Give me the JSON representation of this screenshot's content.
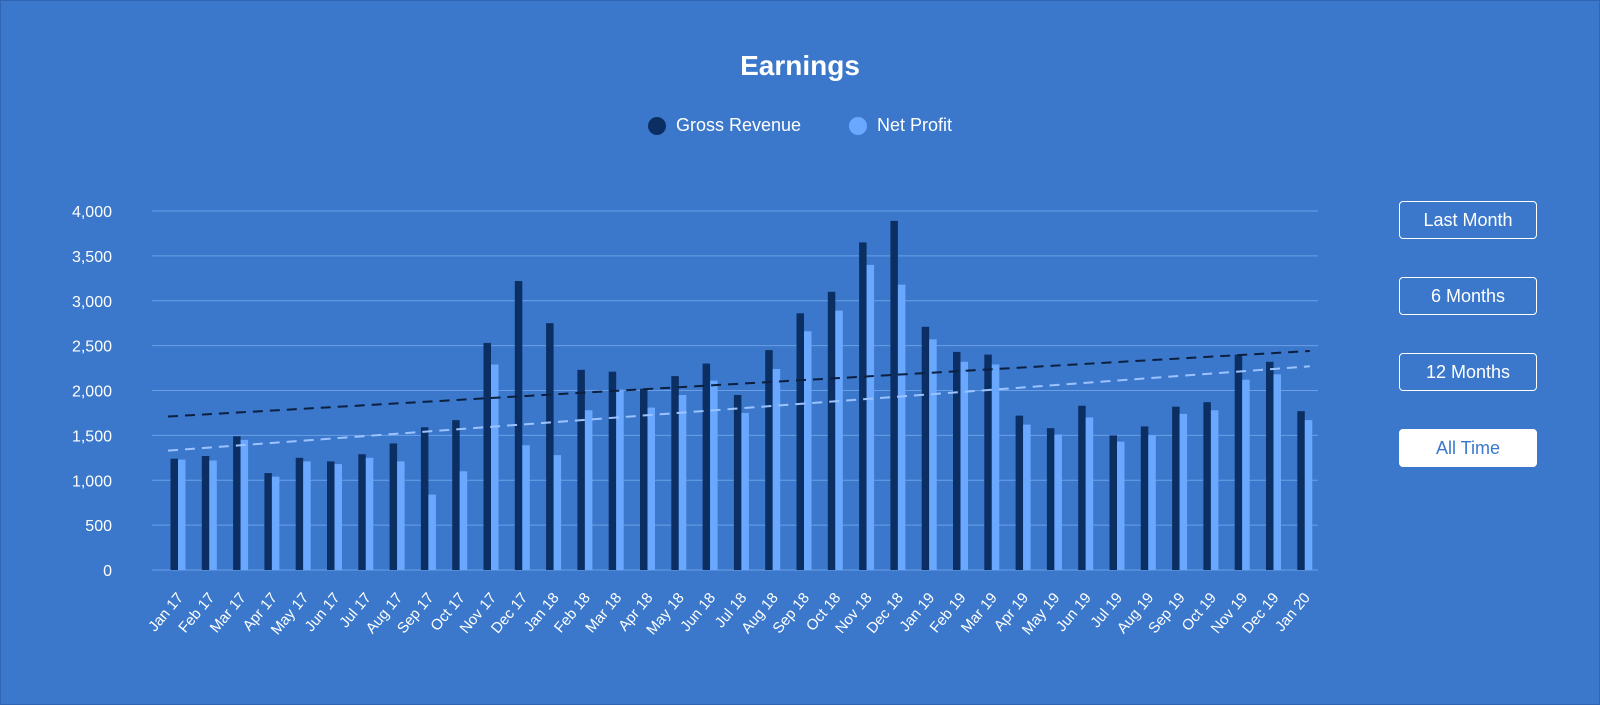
{
  "colors": {
    "background": "#3b78cb",
    "gross_revenue": "#0c2f63",
    "net_profit": "#6aa8ff",
    "grid": "#6a9fe6"
  },
  "range_buttons": [
    {
      "label": "Last Month",
      "active": false
    },
    {
      "label": "6 Months",
      "active": false
    },
    {
      "label": "12 Months",
      "active": false
    },
    {
      "label": "All Time",
      "active": true
    }
  ],
  "chart_data": {
    "type": "bar",
    "title": "Earnings",
    "xlabel": "",
    "ylabel": "",
    "ylim": [
      0,
      4000
    ],
    "yticks": [
      0,
      500,
      1000,
      1500,
      2000,
      2500,
      3000,
      3500,
      4000
    ],
    "ytick_labels": [
      "0",
      "500",
      "1,000",
      "1,500",
      "2,000",
      "2,500",
      "3,000",
      "3,500",
      "4,000"
    ],
    "grid": true,
    "legend_position": "top-center",
    "categories": [
      "Jan 17",
      "Feb 17",
      "Mar 17",
      "Apr 17",
      "May 17",
      "Jun 17",
      "Jul 17",
      "Aug 17",
      "Sep 17",
      "Oct 17",
      "Nov 17",
      "Dec 17",
      "Jan 18",
      "Feb 18",
      "Mar 18",
      "Apr 18",
      "May 18",
      "Jun 18",
      "Jul 18",
      "Aug 18",
      "Sep 18",
      "Oct 18",
      "Nov 18",
      "Dec 18",
      "Jan 19",
      "Feb 19",
      "Mar 19",
      "Apr 19",
      "May 19",
      "Jun 19",
      "Jul 19",
      "Aug 19",
      "Sep 19",
      "Oct 19",
      "Nov 19",
      "Dec 19",
      "Jan 20"
    ],
    "series": [
      {
        "name": "Gross Revenue",
        "values": [
          1240,
          1270,
          1490,
          1080,
          1250,
          1210,
          1290,
          1410,
          1590,
          1670,
          2530,
          3220,
          2750,
          2230,
          2210,
          2020,
          2160,
          2300,
          1950,
          2450,
          2860,
          3100,
          3650,
          3890,
          2710,
          2430,
          2400,
          1720,
          1580,
          1830,
          1500,
          1600,
          1820,
          1870,
          2400,
          2320,
          1770
        ],
        "trendline": [
          1710,
          2440
        ]
      },
      {
        "name": "Net Profit",
        "values": [
          1230,
          1220,
          1450,
          1040,
          1210,
          1180,
          1250,
          1210,
          840,
          1100,
          2290,
          1390,
          1280,
          1780,
          2010,
          1810,
          1950,
          2110,
          1750,
          2240,
          2660,
          2890,
          3400,
          3180,
          2570,
          2320,
          2290,
          1620,
          1510,
          1700,
          1430,
          1500,
          1740,
          1780,
          2120,
          2180,
          1670
        ],
        "trendline": [
          1330,
          2270
        ]
      }
    ]
  }
}
